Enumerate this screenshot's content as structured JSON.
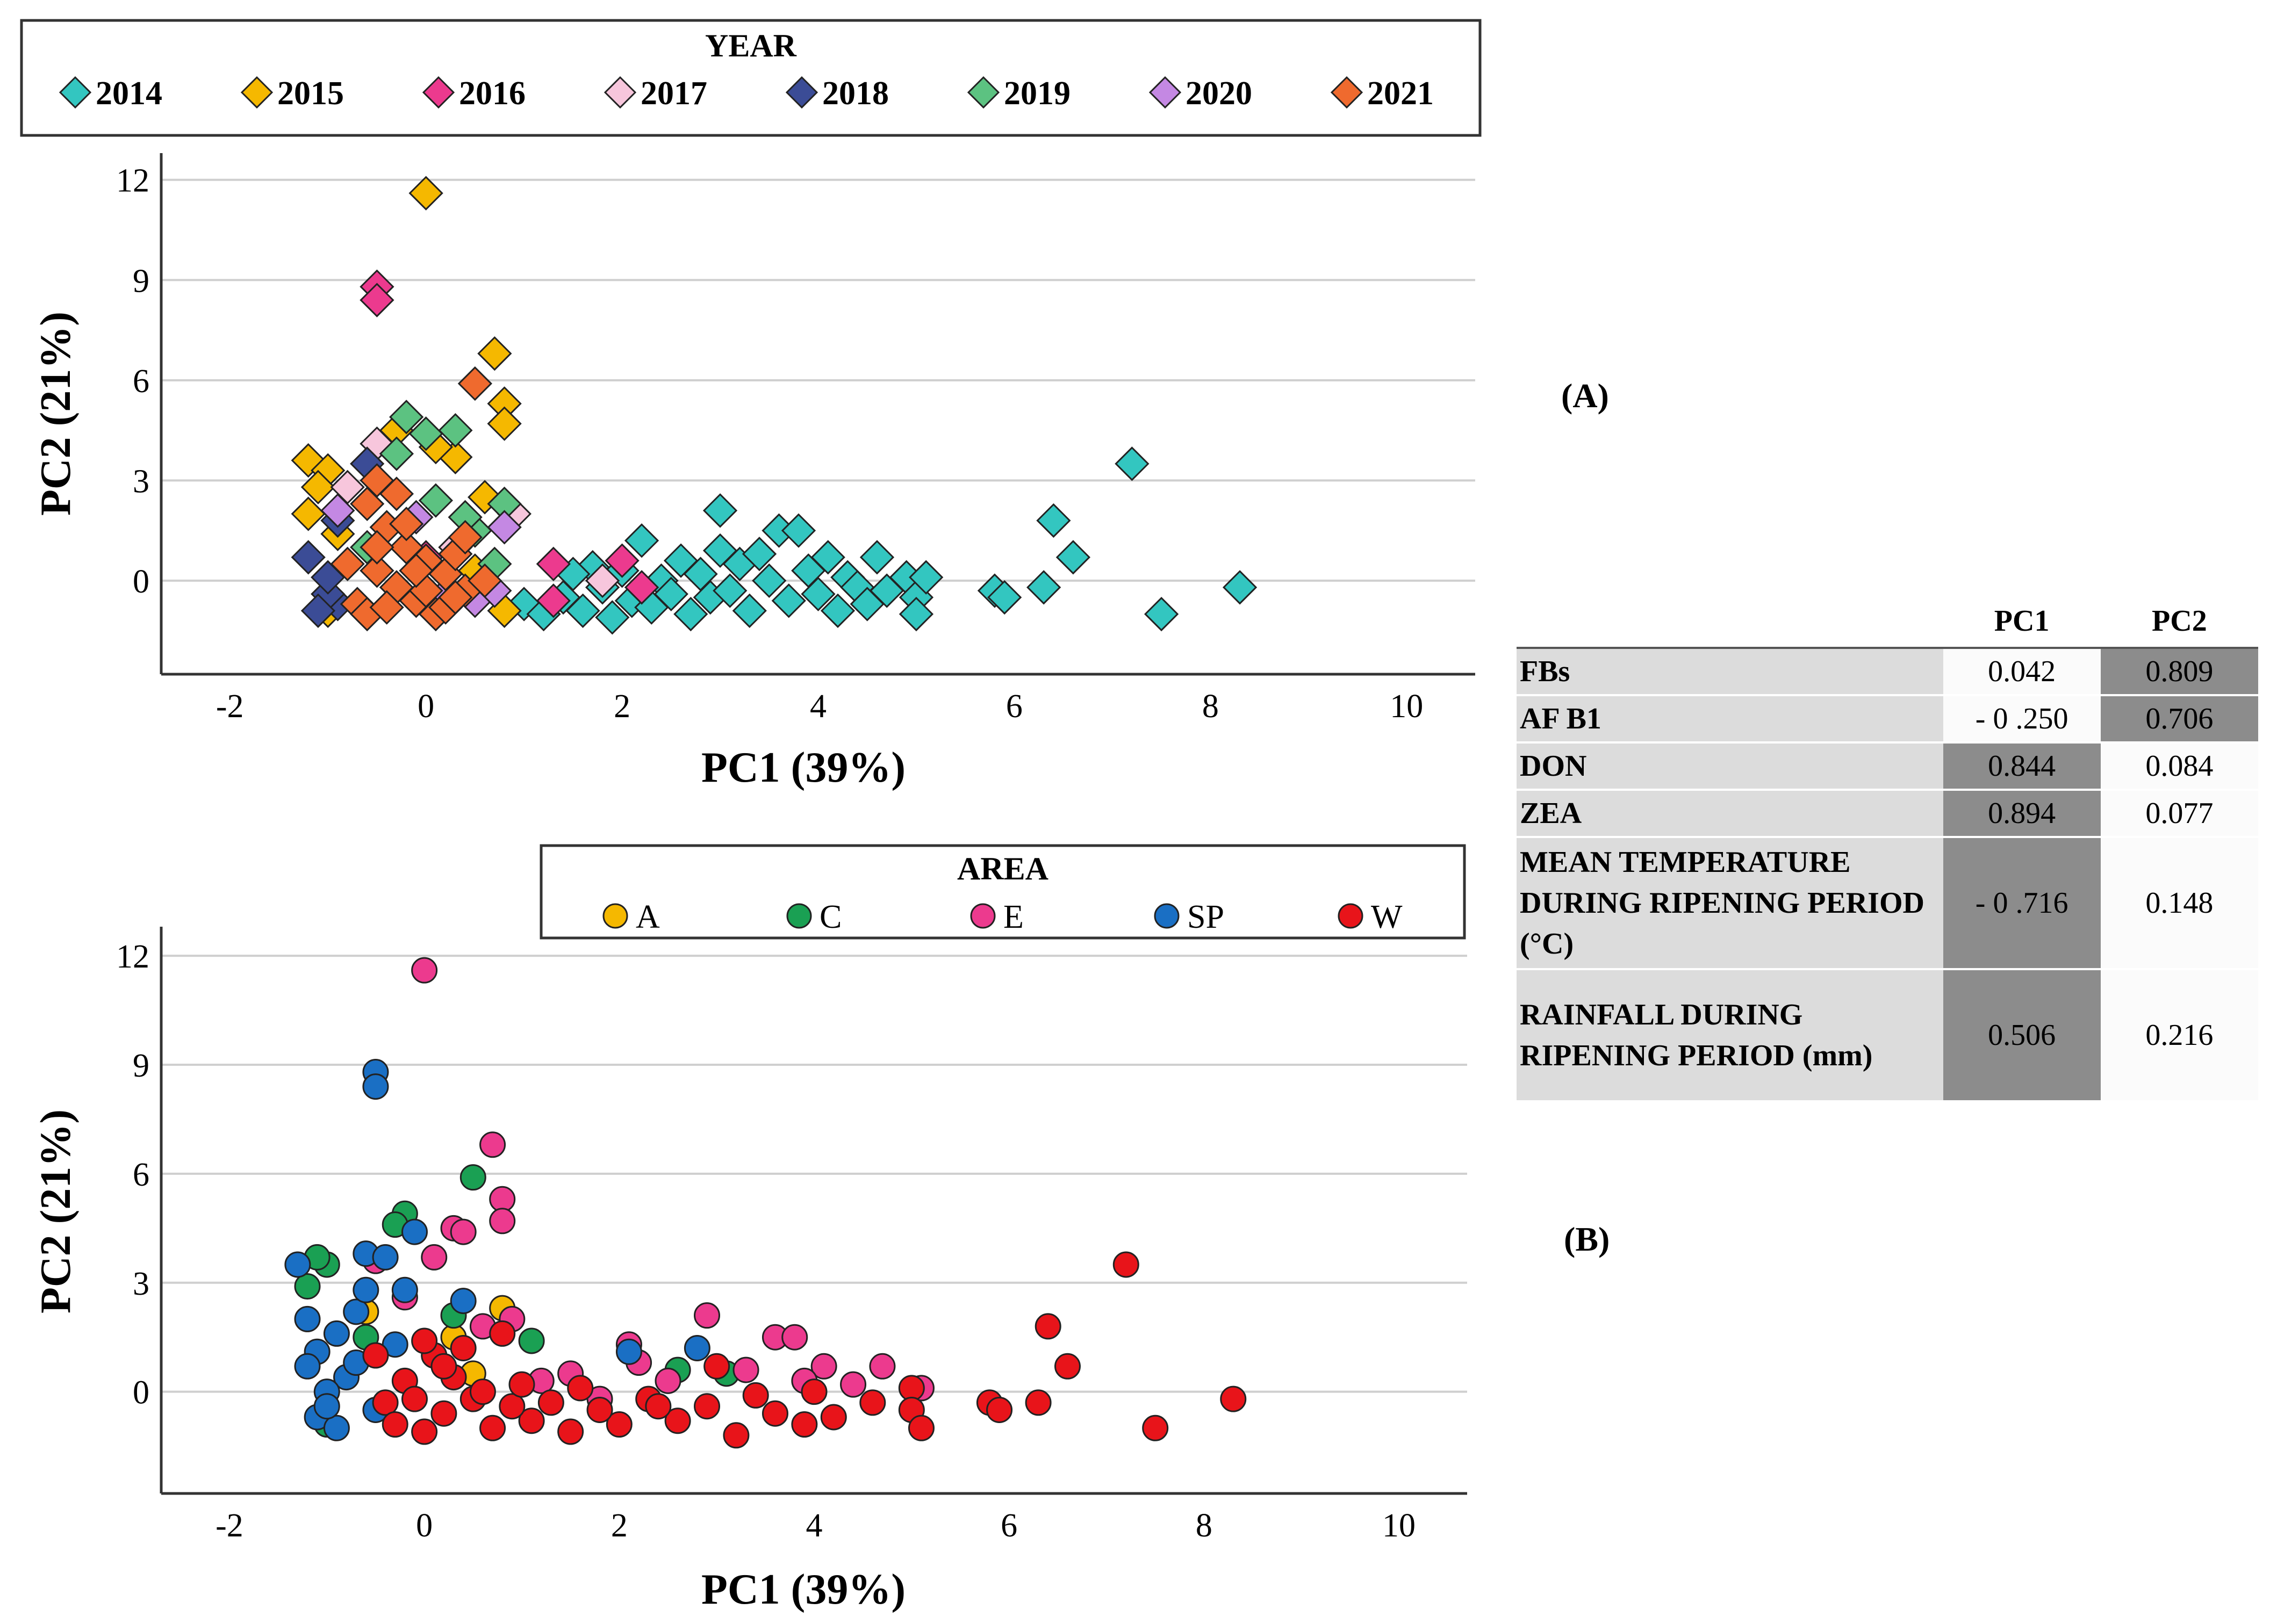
{
  "chart_data": [
    {
      "type": "scatter",
      "panel": "(A)",
      "legend_title": "YEAR",
      "legend_position": "top",
      "marker": "diamond",
      "xlabel": "PC1 (39%)",
      "ylabel": "PC2 (21%)",
      "xlim": [
        -2.7,
        10.7
      ],
      "ylim": [
        -2.8,
        12.8
      ],
      "xticks": [
        -2,
        0,
        2,
        4,
        6,
        8,
        10
      ],
      "yticks": [
        0,
        3,
        6,
        9,
        12
      ],
      "grid": "horizontal",
      "series": [
        {
          "name": "2014",
          "color": "#33c6c0",
          "points": [
            [
              1.0,
              -0.7
            ],
            [
              1.2,
              -1.0
            ],
            [
              1.4,
              -0.5
            ],
            [
              1.6,
              -0.9
            ],
            [
              1.7,
              0.4
            ],
            [
              1.8,
              -0.2
            ],
            [
              1.9,
              -1.1
            ],
            [
              2.0,
              0.3
            ],
            [
              2.1,
              -0.6
            ],
            [
              2.2,
              1.2
            ],
            [
              2.3,
              -0.8
            ],
            [
              2.4,
              0.0
            ],
            [
              2.5,
              -0.4
            ],
            [
              2.6,
              0.6
            ],
            [
              2.7,
              -1.0
            ],
            [
              2.8,
              0.2
            ],
            [
              2.9,
              -0.5
            ],
            [
              3.0,
              2.1
            ],
            [
              3.0,
              0.9
            ],
            [
              3.1,
              -0.3
            ],
            [
              3.2,
              0.5
            ],
            [
              3.3,
              -0.9
            ],
            [
              3.4,
              0.8
            ],
            [
              3.5,
              0.0
            ],
            [
              3.6,
              1.5
            ],
            [
              3.7,
              -0.6
            ],
            [
              3.8,
              1.5
            ],
            [
              3.9,
              0.3
            ],
            [
              4.0,
              -0.4
            ],
            [
              4.1,
              0.7
            ],
            [
              4.2,
              -0.9
            ],
            [
              4.3,
              0.1
            ],
            [
              4.4,
              -0.2
            ],
            [
              4.5,
              -0.7
            ],
            [
              4.6,
              0.7
            ],
            [
              4.7,
              -0.3
            ],
            [
              4.9,
              0.1
            ],
            [
              5.0,
              -0.5
            ],
            [
              5.1,
              0.1
            ],
            [
              5.0,
              -1.0
            ],
            [
              5.8,
              -0.3
            ],
            [
              5.9,
              -0.5
            ],
            [
              6.3,
              -0.2
            ],
            [
              6.4,
              1.8
            ],
            [
              6.6,
              0.7
            ],
            [
              7.2,
              3.5
            ],
            [
              7.5,
              -1.0
            ],
            [
              8.3,
              -0.2
            ],
            [
              1.5,
              0.2
            ],
            [
              2.2,
              -0.2
            ]
          ]
        },
        {
          "name": "2015",
          "color": "#f5b800",
          "points": [
            [
              0.0,
              11.6
            ],
            [
              0.7,
              6.8
            ],
            [
              0.8,
              5.3
            ],
            [
              0.8,
              4.7
            ],
            [
              -1.2,
              3.6
            ],
            [
              -1.0,
              3.3
            ],
            [
              -1.1,
              2.8
            ],
            [
              -1.2,
              2.0
            ],
            [
              0.3,
              3.7
            ],
            [
              -0.3,
              4.5
            ],
            [
              0.1,
              4.0
            ],
            [
              0.6,
              2.5
            ],
            [
              -0.9,
              1.4
            ],
            [
              0.5,
              0.3
            ],
            [
              0.8,
              -0.9
            ],
            [
              -1.0,
              -0.9
            ]
          ]
        },
        {
          "name": "2016",
          "color": "#ec3a8e",
          "points": [
            [
              -0.5,
              8.8
            ],
            [
              -0.5,
              8.4
            ],
            [
              2.0,
              0.6
            ],
            [
              1.3,
              0.5
            ],
            [
              2.2,
              -0.2
            ],
            [
              1.3,
              -0.6
            ],
            [
              0.0,
              0.7
            ]
          ]
        },
        {
          "name": "2017",
          "color": "#f7c6dc",
          "points": [
            [
              -0.5,
              4.1
            ],
            [
              0.9,
              2.0
            ],
            [
              0.3,
              1.0
            ],
            [
              1.8,
              0.0
            ],
            [
              -0.8,
              2.8
            ],
            [
              0.1,
              -0.9
            ]
          ]
        },
        {
          "name": "2018",
          "color": "#3b4c96",
          "points": [
            [
              -1.2,
              0.7
            ],
            [
              -0.9,
              -0.7
            ],
            [
              -1.0,
              -0.4
            ],
            [
              -0.6,
              3.5
            ],
            [
              -0.9,
              1.8
            ],
            [
              -1.0,
              0.1
            ],
            [
              -1.1,
              -0.9
            ]
          ]
        },
        {
          "name": "2019",
          "color": "#5cc281",
          "points": [
            [
              -0.2,
              4.9
            ],
            [
              0.0,
              4.4
            ],
            [
              0.3,
              4.5
            ],
            [
              -0.3,
              3.8
            ],
            [
              0.8,
              2.3
            ],
            [
              -0.6,
              1.0
            ],
            [
              0.5,
              1.5
            ],
            [
              0.1,
              2.4
            ],
            [
              0.7,
              0.5
            ],
            [
              0.4,
              1.9
            ]
          ]
        },
        {
          "name": "2020",
          "color": "#c488e3",
          "points": [
            [
              0.8,
              1.6
            ],
            [
              -0.1,
              1.9
            ],
            [
              0.2,
              -0.4
            ],
            [
              -0.9,
              2.1
            ],
            [
              0.5,
              -0.6
            ],
            [
              0.7,
              -0.3
            ]
          ]
        },
        {
          "name": "2021",
          "color": "#ef6a2e",
          "points": [
            [
              0.5,
              5.9
            ],
            [
              -0.5,
              3.0
            ],
            [
              -0.6,
              2.3
            ],
            [
              -0.4,
              1.6
            ],
            [
              -0.2,
              1.0
            ],
            [
              0.0,
              0.6
            ],
            [
              0.2,
              0.2
            ],
            [
              0.4,
              -0.3
            ],
            [
              -0.7,
              -0.7
            ],
            [
              -0.3,
              -0.2
            ],
            [
              0.1,
              -1.0
            ],
            [
              0.3,
              0.8
            ],
            [
              -0.5,
              0.3
            ],
            [
              -0.1,
              -0.6
            ],
            [
              0.4,
              1.3
            ],
            [
              -0.6,
              -1.0
            ],
            [
              0.2,
              -0.8
            ],
            [
              -0.3,
              2.6
            ],
            [
              0.6,
              0.0
            ],
            [
              -0.2,
              1.7
            ],
            [
              -0.8,
              0.5
            ],
            [
              0.0,
              -0.3
            ],
            [
              -0.4,
              -0.8
            ],
            [
              0.3,
              -0.5
            ],
            [
              -0.1,
              0.3
            ],
            [
              -0.5,
              1.0
            ]
          ]
        }
      ]
    },
    {
      "type": "scatter",
      "panel": "(B)",
      "legend_title": "AREA",
      "legend_position": "top-right",
      "marker": "circle",
      "xlabel": "PC1 (39%)",
      "ylabel": "PC2 (21%)",
      "xlim": [
        -2.7,
        10.7
      ],
      "ylim": [
        -2.8,
        12.8
      ],
      "xticks": [
        -2,
        0,
        2,
        4,
        6,
        8,
        10
      ],
      "yticks": [
        0,
        3,
        6,
        9,
        12
      ],
      "grid": "horizontal",
      "series": [
        {
          "name": "A",
          "color": "#f5b800",
          "points": [
            [
              0.8,
              2.3
            ],
            [
              0.3,
              1.5
            ],
            [
              -0.6,
              2.2
            ],
            [
              0.1,
              1.0
            ],
            [
              0.5,
              0.5
            ]
          ]
        },
        {
          "name": "C",
          "color": "#1aa053",
          "points": [
            [
              0.5,
              5.9
            ],
            [
              -0.2,
              4.9
            ],
            [
              -0.3,
              4.6
            ],
            [
              -1.0,
              3.5
            ],
            [
              -1.2,
              2.9
            ],
            [
              -1.1,
              3.7
            ],
            [
              1.1,
              1.4
            ],
            [
              0.3,
              2.1
            ],
            [
              -0.6,
              1.5
            ],
            [
              2.6,
              0.6
            ],
            [
              3.1,
              0.5
            ],
            [
              -1.0,
              -0.9
            ]
          ]
        },
        {
          "name": "E",
          "color": "#ec3a8e",
          "points": [
            [
              0.0,
              11.6
            ],
            [
              0.7,
              6.8
            ],
            [
              0.8,
              5.3
            ],
            [
              0.8,
              4.7
            ],
            [
              0.3,
              4.5
            ],
            [
              0.4,
              4.4
            ],
            [
              -0.5,
              3.6
            ],
            [
              0.1,
              3.7
            ],
            [
              0.9,
              2.0
            ],
            [
              2.1,
              1.3
            ],
            [
              2.9,
              2.1
            ],
            [
              3.6,
              1.5
            ],
            [
              3.8,
              1.5
            ],
            [
              4.1,
              0.7
            ],
            [
              4.7,
              0.7
            ],
            [
              5.1,
              0.1
            ],
            [
              1.5,
              0.5
            ],
            [
              2.5,
              0.3
            ],
            [
              3.3,
              0.6
            ],
            [
              1.8,
              -0.2
            ],
            [
              4.4,
              0.2
            ],
            [
              2.2,
              0.8
            ],
            [
              -0.2,
              2.6
            ],
            [
              0.6,
              1.8
            ],
            [
              3.9,
              0.3
            ],
            [
              1.2,
              0.3
            ]
          ]
        },
        {
          "name": "SP",
          "color": "#1a6fc4",
          "points": [
            [
              -0.5,
              8.8
            ],
            [
              -0.5,
              8.4
            ],
            [
              -0.1,
              4.4
            ],
            [
              -0.6,
              3.8
            ],
            [
              -0.4,
              3.7
            ],
            [
              -1.3,
              3.5
            ],
            [
              0.4,
              2.5
            ],
            [
              -0.2,
              2.8
            ],
            [
              -0.7,
              2.2
            ],
            [
              -1.2,
              2.0
            ],
            [
              -0.9,
              1.6
            ],
            [
              -1.1,
              1.1
            ],
            [
              -1.2,
              0.7
            ],
            [
              -0.8,
              0.4
            ],
            [
              -1.0,
              0.0
            ],
            [
              -1.1,
              -0.7
            ],
            [
              -0.5,
              -0.5
            ],
            [
              -0.9,
              -1.0
            ],
            [
              -0.7,
              0.8
            ],
            [
              -0.3,
              1.3
            ],
            [
              2.8,
              1.2
            ],
            [
              2.1,
              1.1
            ],
            [
              -1.0,
              -0.4
            ],
            [
              -0.6,
              2.8
            ]
          ]
        },
        {
          "name": "W",
          "color": "#e8141a",
          "points": [
            [
              7.2,
              3.5
            ],
            [
              6.4,
              1.8
            ],
            [
              6.6,
              0.7
            ],
            [
              8.3,
              -0.2
            ],
            [
              7.5,
              -1.0
            ],
            [
              6.3,
              -0.3
            ],
            [
              5.8,
              -0.3
            ],
            [
              5.9,
              -0.5
            ],
            [
              5.0,
              0.1
            ],
            [
              5.0,
              -0.5
            ],
            [
              5.1,
              -1.0
            ],
            [
              4.6,
              -0.3
            ],
            [
              4.2,
              -0.7
            ],
            [
              3.9,
              -0.9
            ],
            [
              3.6,
              -0.6
            ],
            [
              3.2,
              -1.2
            ],
            [
              3.0,
              0.7
            ],
            [
              2.9,
              -0.4
            ],
            [
              2.6,
              -0.8
            ],
            [
              2.3,
              -0.2
            ],
            [
              2.0,
              -0.9
            ],
            [
              1.8,
              -0.5
            ],
            [
              1.5,
              -1.1
            ],
            [
              1.3,
              -0.3
            ],
            [
              1.1,
              -0.8
            ],
            [
              0.9,
              -0.4
            ],
            [
              0.7,
              -1.0
            ],
            [
              0.5,
              -0.2
            ],
            [
              0.3,
              0.4
            ],
            [
              0.1,
              1.0
            ],
            [
              0.0,
              1.4
            ],
            [
              -0.2,
              0.3
            ],
            [
              -0.4,
              -0.3
            ],
            [
              -0.5,
              1.0
            ],
            [
              -0.3,
              -0.9
            ],
            [
              0.2,
              -0.6
            ],
            [
              0.4,
              1.2
            ],
            [
              0.6,
              0.0
            ],
            [
              0.8,
              1.6
            ],
            [
              1.0,
              0.2
            ],
            [
              -0.1,
              -0.2
            ],
            [
              0.2,
              0.7
            ],
            [
              3.4,
              -0.1
            ],
            [
              4.0,
              0.0
            ],
            [
              1.6,
              0.1
            ],
            [
              2.4,
              -0.4
            ],
            [
              0.0,
              -1.1
            ]
          ]
        }
      ]
    },
    {
      "type": "table",
      "columns": [
        "",
        "PC1",
        "PC2"
      ],
      "rows": [
        {
          "label": "FBs",
          "pc1": "0.042",
          "pc2": "0.809",
          "highlight": "pc2"
        },
        {
          "label": "AF B1",
          "pc1": "- 0 .250",
          "pc2": "0.706",
          "highlight": "pc2"
        },
        {
          "label": "DON",
          "pc1": "0.844",
          "pc2": "0.084",
          "highlight": "pc1"
        },
        {
          "label": "ZEA",
          "pc1": "0.894",
          "pc2": "0.077",
          "highlight": "pc1"
        },
        {
          "label": "MEAN TEMPERATURE DURING RIPENING PERIOD (°C)",
          "pc1": "- 0 .716",
          "pc2": "0.148",
          "highlight": "pc1"
        },
        {
          "label": "RAINFALL DURING RIPENING PERIOD (mm)",
          "pc1": "0.506",
          "pc2": "0.216",
          "highlight": "pc1"
        }
      ]
    }
  ],
  "labels": {
    "panel_a": "(A)",
    "panel_b": "(B)"
  }
}
